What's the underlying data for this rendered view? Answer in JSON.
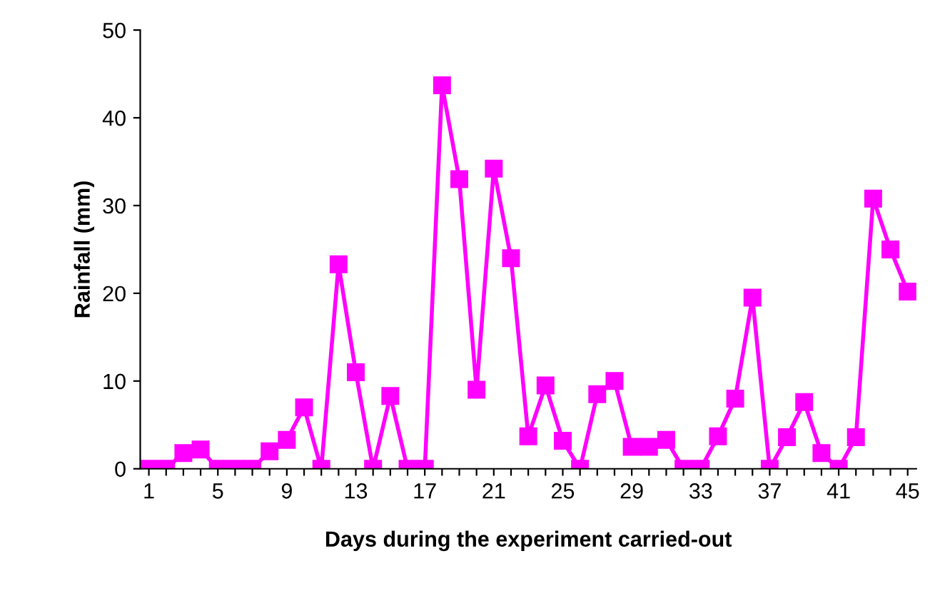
{
  "chart_data": {
    "type": "line",
    "xlabel": "Days during the experiment carried-out",
    "ylabel": "Rainfall (mm)",
    "categories": [
      "1",
      null,
      null,
      null,
      "5",
      null,
      null,
      null,
      "9",
      null,
      null,
      null,
      "13",
      null,
      null,
      null,
      "17",
      null,
      null,
      null,
      "21",
      null,
      null,
      null,
      "25",
      null,
      null,
      null,
      "29",
      null,
      null,
      null,
      "33",
      null,
      null,
      null,
      "37",
      null,
      null,
      null,
      "41",
      null,
      null,
      null,
      "45"
    ],
    "series": [
      {
        "color": "#ff00ff",
        "values": [
          0,
          0,
          1.8,
          2.2,
          0,
          0,
          0,
          2,
          3.3,
          7,
          0,
          23.3,
          11,
          0,
          8.3,
          0,
          0,
          43.7,
          33,
          9,
          34.2,
          24,
          3.7,
          9.5,
          3.2,
          0,
          8.5,
          10,
          2.5,
          2.5,
          3.3,
          0,
          0,
          3.7,
          8,
          19.5,
          0,
          3.6,
          7.6,
          1.8,
          0,
          3.6,
          30.8,
          25,
          20.2
        ]
      }
    ],
    "ylim": [
      0,
      50
    ],
    "yticks": [
      0,
      10,
      20,
      30,
      40,
      50
    ],
    "grid": false,
    "legend": false,
    "marker": "square",
    "line_style": "solid"
  }
}
